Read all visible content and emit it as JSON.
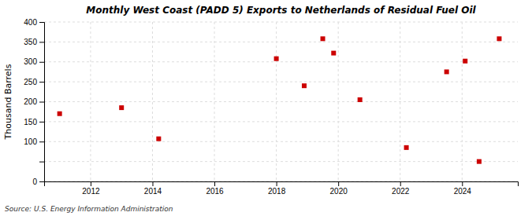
{
  "chart_data": {
    "type": "scatter",
    "title": "Monthly West Coast (PADD 5) Exports to Netherlands of Residual Fuel Oil",
    "ylabel": "Thousand Barrels",
    "source": "Source: U.S. Energy Information Administration",
    "x": [
      2011.0,
      2013.0,
      2014.2,
      2018.0,
      2018.9,
      2019.5,
      2019.85,
      2020.7,
      2022.2,
      2023.5,
      2024.1,
      2024.55,
      2025.2
    ],
    "values": [
      170,
      185,
      107,
      308,
      240,
      358,
      322,
      205,
      85,
      275,
      302,
      50,
      358
    ],
    "color": "#cc0000",
    "marker": "square",
    "xlim": [
      2010.5,
      2025.8
    ],
    "xticks": [
      2012,
      2014,
      2016,
      2018,
      2020,
      2022,
      2024
    ],
    "ylim": [
      0,
      400
    ],
    "yticks": [
      0,
      {
        "value": 50,
        "label": null
      },
      100,
      150,
      200,
      250,
      300,
      350,
      400
    ],
    "grid": true
  }
}
